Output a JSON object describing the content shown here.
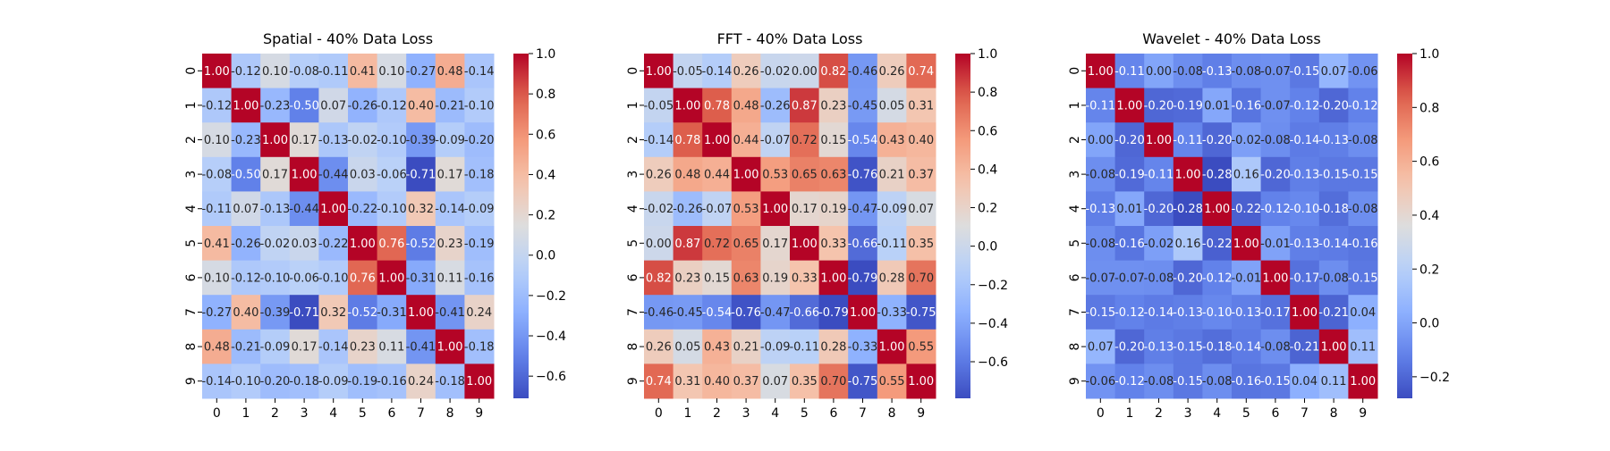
{
  "chart_data": [
    {
      "type": "heatmap",
      "title": "Spatial - 40% Data Loss",
      "labels": [
        "0",
        "1",
        "2",
        "3",
        "4",
        "5",
        "6",
        "7",
        "8",
        "9"
      ],
      "vmin": -0.71,
      "vmax": 1.0,
      "colorbar_ticks": [
        1.0,
        0.8,
        0.6,
        0.4,
        0.2,
        0.0,
        -0.2,
        -0.4,
        -0.6
      ],
      "colorbar_tick_labels": [
        "1.0",
        "0.8",
        "0.6",
        "0.4",
        "0.2",
        "0.0",
        "−0.2",
        "−0.4",
        "−0.6"
      ],
      "matrix": [
        [
          1.0,
          -0.12,
          0.1,
          -0.08,
          -0.11,
          0.41,
          0.1,
          -0.27,
          0.48,
          -0.14
        ],
        [
          -0.12,
          1.0,
          -0.23,
          -0.5,
          0.07,
          -0.26,
          -0.12,
          0.4,
          -0.21,
          -0.1
        ],
        [
          0.1,
          -0.23,
          1.0,
          0.17,
          -0.13,
          -0.02,
          -0.1,
          -0.39,
          -0.09,
          -0.2
        ],
        [
          -0.08,
          -0.5,
          0.17,
          1.0,
          -0.44,
          0.03,
          -0.06,
          -0.71,
          0.17,
          -0.18
        ],
        [
          -0.11,
          0.07,
          -0.13,
          -0.44,
          1.0,
          -0.22,
          -0.1,
          0.32,
          -0.14,
          -0.09
        ],
        [
          0.41,
          -0.26,
          -0.02,
          0.03,
          -0.22,
          1.0,
          0.76,
          -0.52,
          0.23,
          -0.19
        ],
        [
          0.1,
          -0.12,
          -0.1,
          -0.06,
          -0.1,
          0.76,
          1.0,
          -0.31,
          0.11,
          -0.16
        ],
        [
          -0.27,
          0.4,
          -0.39,
          -0.71,
          0.32,
          -0.52,
          -0.31,
          1.0,
          -0.41,
          0.24
        ],
        [
          0.48,
          -0.21,
          -0.09,
          0.17,
          -0.14,
          0.23,
          0.11,
          -0.41,
          1.0,
          -0.18
        ],
        [
          -0.14,
          -0.1,
          -0.2,
          -0.18,
          -0.09,
          -0.19,
          -0.16,
          0.24,
          -0.18,
          1.0
        ]
      ]
    },
    {
      "type": "heatmap",
      "title": "FFT - 40% Data Loss",
      "labels": [
        "0",
        "1",
        "2",
        "3",
        "4",
        "5",
        "6",
        "7",
        "8",
        "9"
      ],
      "vmin": -0.79,
      "vmax": 1.0,
      "colorbar_ticks": [
        1.0,
        0.8,
        0.6,
        0.4,
        0.2,
        0.0,
        -0.2,
        -0.4,
        -0.6
      ],
      "colorbar_tick_labels": [
        "1.0",
        "0.8",
        "0.6",
        "0.4",
        "0.2",
        "0.0",
        "−0.2",
        "−0.4",
        "−0.6"
      ],
      "matrix": [
        [
          1.0,
          -0.05,
          -0.14,
          0.26,
          -0.02,
          -0.0,
          0.82,
          -0.46,
          0.26,
          0.74
        ],
        [
          -0.05,
          1.0,
          0.78,
          0.48,
          -0.26,
          0.87,
          0.23,
          -0.45,
          0.05,
          0.31
        ],
        [
          -0.14,
          0.78,
          1.0,
          0.44,
          -0.07,
          0.72,
          0.15,
          -0.54,
          0.43,
          0.4
        ],
        [
          0.26,
          0.48,
          0.44,
          1.0,
          0.53,
          0.65,
          0.63,
          -0.76,
          0.21,
          0.37
        ],
        [
          -0.02,
          -0.26,
          -0.07,
          0.53,
          1.0,
          0.17,
          0.19,
          -0.47,
          -0.09,
          0.07
        ],
        [
          -0.0,
          0.87,
          0.72,
          0.65,
          0.17,
          1.0,
          0.33,
          -0.66,
          -0.11,
          0.35
        ],
        [
          0.82,
          0.23,
          0.15,
          0.63,
          0.19,
          0.33,
          1.0,
          -0.79,
          0.28,
          0.7
        ],
        [
          -0.46,
          -0.45,
          -0.54,
          -0.76,
          -0.47,
          -0.66,
          -0.79,
          1.0,
          -0.33,
          -0.75
        ],
        [
          0.26,
          0.05,
          0.43,
          0.21,
          -0.09,
          -0.11,
          0.28,
          -0.33,
          1.0,
          0.55
        ],
        [
          0.74,
          0.31,
          0.4,
          0.37,
          0.07,
          0.35,
          0.7,
          -0.75,
          0.55,
          1.0
        ]
      ]
    },
    {
      "type": "heatmap",
      "title": "Wavelet - 40% Data Loss",
      "labels": [
        "0",
        "1",
        "2",
        "3",
        "4",
        "5",
        "6",
        "7",
        "8",
        "9"
      ],
      "vmin": -0.28,
      "vmax": 1.0,
      "colorbar_ticks": [
        1.0,
        0.8,
        0.6,
        0.4,
        0.2,
        0.0,
        -0.2
      ],
      "colorbar_tick_labels": [
        "1.0",
        "0.8",
        "0.6",
        "0.4",
        "0.2",
        "0.0",
        "−0.2"
      ],
      "matrix": [
        [
          1.0,
          -0.11,
          0.0,
          -0.08,
          -0.13,
          -0.08,
          -0.07,
          -0.15,
          0.07,
          -0.06
        ],
        [
          -0.11,
          1.0,
          -0.2,
          -0.19,
          0.01,
          -0.16,
          -0.07,
          -0.12,
          -0.2,
          -0.12
        ],
        [
          0.0,
          -0.2,
          1.0,
          -0.11,
          -0.2,
          -0.02,
          -0.08,
          -0.14,
          -0.13,
          -0.08
        ],
        [
          -0.08,
          -0.19,
          -0.11,
          1.0,
          -0.28,
          0.16,
          -0.2,
          -0.13,
          -0.15,
          -0.15
        ],
        [
          -0.13,
          0.01,
          -0.2,
          -0.28,
          1.0,
          -0.22,
          -0.12,
          -0.1,
          -0.18,
          -0.08
        ],
        [
          -0.08,
          -0.16,
          -0.02,
          0.16,
          -0.22,
          1.0,
          -0.01,
          -0.13,
          -0.14,
          -0.16
        ],
        [
          -0.07,
          -0.07,
          -0.08,
          -0.2,
          -0.12,
          -0.01,
          1.0,
          -0.17,
          -0.08,
          -0.15
        ],
        [
          -0.15,
          -0.12,
          -0.14,
          -0.13,
          -0.1,
          -0.13,
          -0.17,
          1.0,
          -0.21,
          0.04
        ],
        [
          0.07,
          -0.2,
          -0.13,
          -0.15,
          -0.18,
          -0.14,
          -0.08,
          -0.21,
          1.0,
          0.11
        ],
        [
          -0.06,
          -0.12,
          -0.08,
          -0.15,
          -0.08,
          -0.16,
          -0.15,
          0.04,
          0.11,
          1.0
        ]
      ]
    }
  ],
  "colormap": {
    "name": "coolwarm",
    "low_color": "#3b4cc0",
    "mid_color": "#dddddd",
    "high_color": "#b40426"
  }
}
